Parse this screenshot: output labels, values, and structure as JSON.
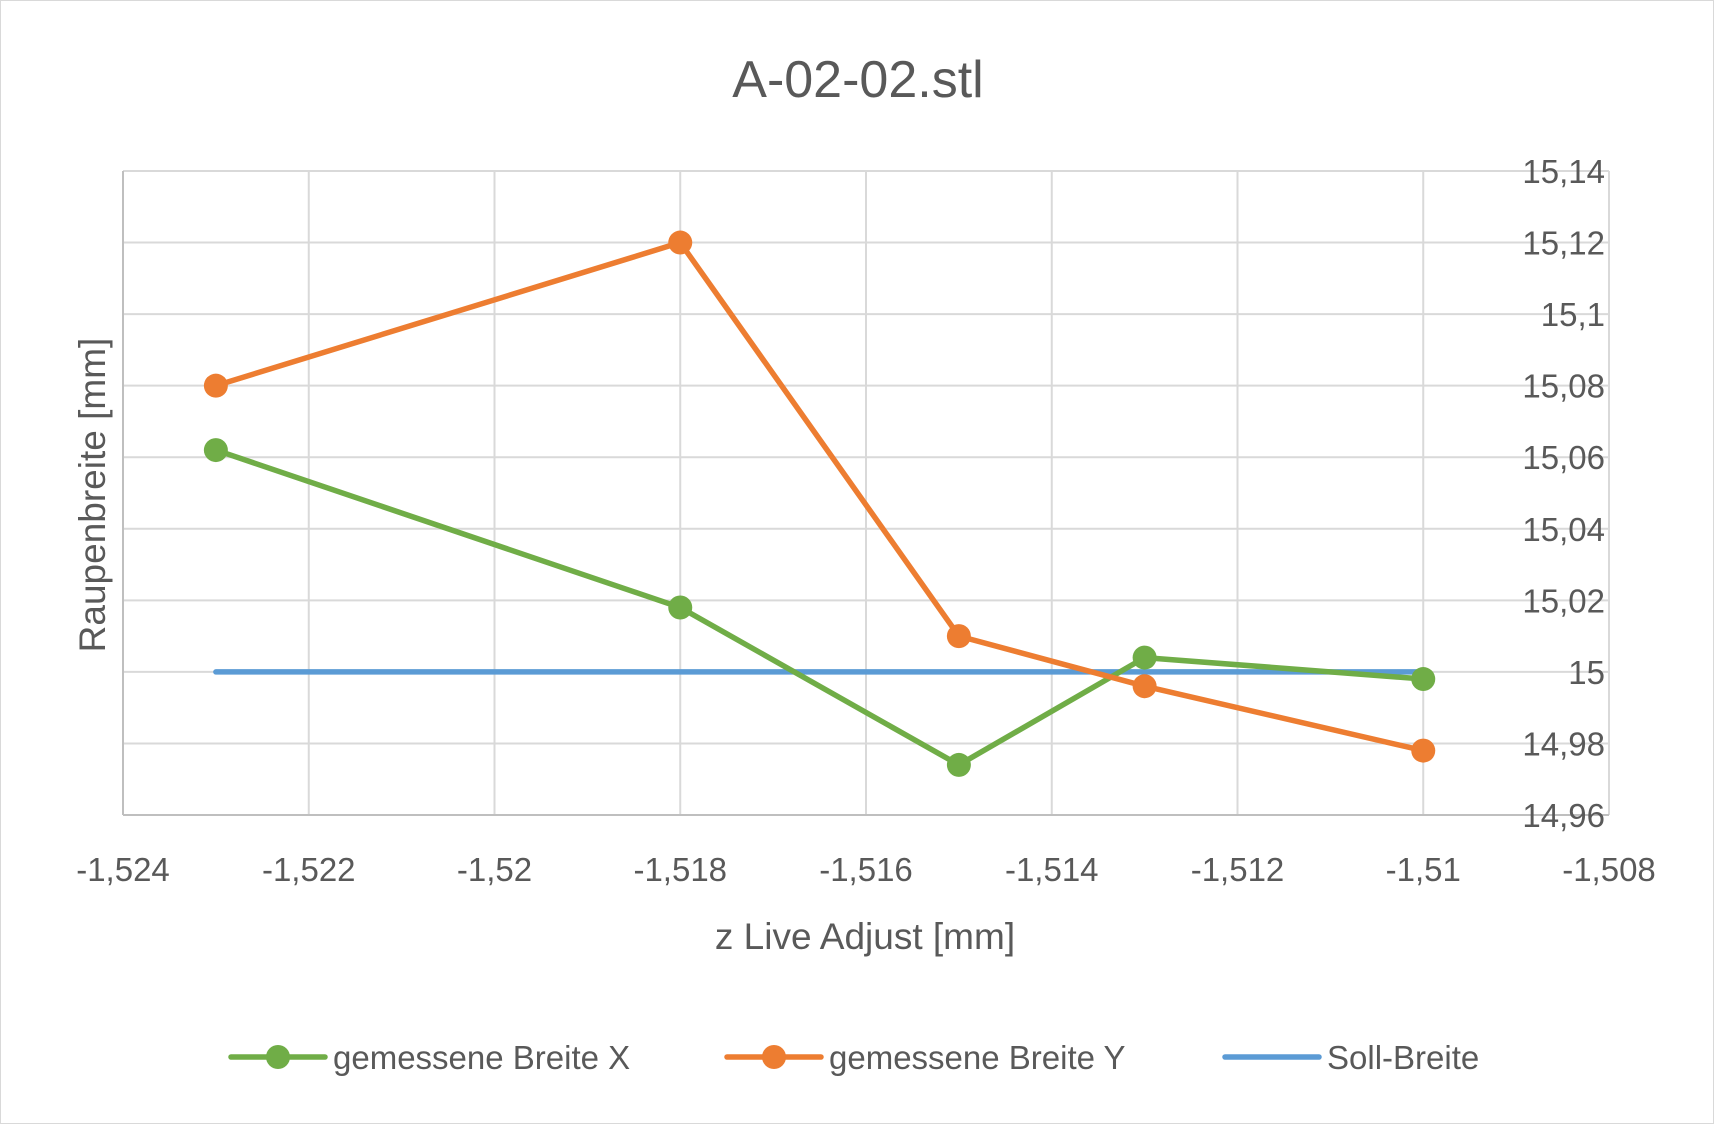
{
  "chart_data": {
    "type": "scatter",
    "title": "A-02-02.stl",
    "xlabel": "z Live Adjust [mm]",
    "ylabel": "Raupenbreite [mm]",
    "xlim": [
      -1.524,
      -1.508
    ],
    "ylim": [
      14.96,
      15.14
    ],
    "x_tick_values": [
      -1.524,
      -1.522,
      -1.52,
      -1.518,
      -1.516,
      -1.514,
      -1.512,
      -1.51,
      -1.508
    ],
    "x_tick_labels": [
      "-1,524",
      "-1,522",
      "-1,52",
      "-1,518",
      "-1,516",
      "-1,514",
      "-1,512",
      "-1,51",
      "-1,508"
    ],
    "y_tick_values": [
      14.96,
      14.98,
      15.0,
      15.02,
      15.04,
      15.06,
      15.08,
      15.1,
      15.12,
      15.14
    ],
    "y_tick_labels": [
      "14,96",
      "14,98",
      "15",
      "15,02",
      "15,04",
      "15,06",
      "15,08",
      "15,1",
      "15,12",
      "15,14"
    ],
    "y_axis_side": "right",
    "grid": true,
    "legend_position": "bottom",
    "series": [
      {
        "name": "gemessene Breite X",
        "color": "#70ad47",
        "marker": true,
        "x": [
          -1.523,
          -1.518,
          -1.515,
          -1.513,
          -1.51
        ],
        "y": [
          15.062,
          15.018,
          14.974,
          15.004,
          14.998
        ]
      },
      {
        "name": "gemessene Breite Y",
        "color": "#ed7d31",
        "marker": true,
        "x": [
          -1.523,
          -1.518,
          -1.515,
          -1.513,
          -1.51
        ],
        "y": [
          15.08,
          15.12,
          15.01,
          14.996,
          14.978
        ]
      },
      {
        "name": "Soll-Breite",
        "color": "#5b9bd5",
        "marker": false,
        "x": [
          -1.523,
          -1.51
        ],
        "y": [
          15.0,
          15.0
        ]
      }
    ]
  }
}
